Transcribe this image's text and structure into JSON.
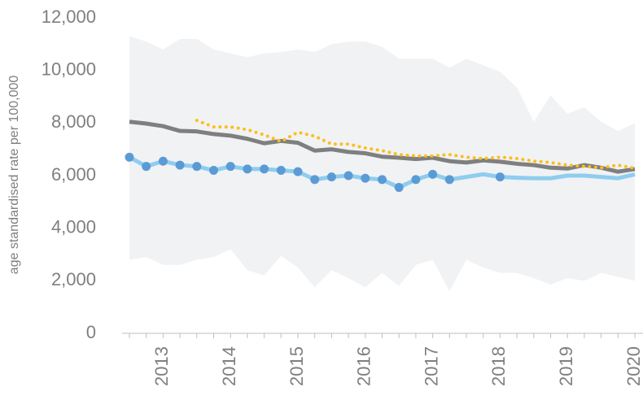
{
  "chart_data": {
    "type": "line",
    "y_label": "age standardised rate per 100,000",
    "categories": [
      null,
      null,
      "2013",
      null,
      null,
      null,
      "2014",
      null,
      null,
      null,
      "2015",
      null,
      null,
      null,
      "2016",
      null,
      null,
      null,
      "2017",
      null,
      null,
      null,
      "2018",
      null,
      null,
      null,
      "2019",
      null,
      null,
      null,
      "2020"
    ],
    "ylim": [
      0,
      12000
    ],
    "yticks": [
      0,
      {
        "value": 2000,
        "label": "2,000"
      },
      {
        "value": 4000,
        "label": "4,000"
      },
      {
        "value": 6000,
        "label": "6,000"
      },
      {
        "value": 8000,
        "label": "8,000"
      },
      {
        "value": 10000,
        "label": "10,000"
      },
      {
        "value": 12000,
        "label": "12,000"
      }
    ],
    "grid": false,
    "series": [
      {
        "style": "band",
        "color": "#f1f2f4",
        "values": [
          11300,
          11100,
          10800,
          11200,
          11200,
          10800,
          10650,
          10500,
          10650,
          10700,
          10800,
          10700,
          11000,
          11100,
          11100,
          10900,
          10450,
          10450,
          10450,
          10100,
          10450,
          10200,
          9950,
          9350,
          8050,
          9050,
          8350,
          8600,
          8050,
          7700,
          8000
        ],
        "lower": [
          2800,
          2900,
          2600,
          2600,
          2800,
          2900,
          3200,
          2400,
          2200,
          2950,
          2500,
          1750,
          2400,
          2100,
          1750,
          2300,
          1800,
          2600,
          2800,
          1600,
          2800,
          2500,
          2300,
          2300,
          2100,
          1850,
          2100,
          2000,
          2300,
          2150,
          2000
        ]
      },
      {
        "style": "line",
        "color": "#7f7f7f",
        "values": [
          8050,
          7980,
          7880,
          7700,
          7680,
          7580,
          7520,
          7400,
          7230,
          7320,
          7250,
          6950,
          7000,
          6900,
          6850,
          6720,
          6680,
          6630,
          6680,
          6550,
          6500,
          6580,
          6530,
          6450,
          6400,
          6300,
          6270,
          6400,
          6300,
          6150,
          6250
        ]
      },
      {
        "style": "dotted",
        "color": "#fbbf1b",
        "values": [
          null,
          null,
          null,
          null,
          8100,
          7850,
          7850,
          7750,
          7550,
          7300,
          7650,
          7500,
          7200,
          7200,
          7050,
          6950,
          6800,
          6750,
          6750,
          6800,
          6700,
          6650,
          6700,
          6650,
          6550,
          6500,
          6400,
          6350,
          6300,
          6400,
          6280
        ]
      },
      {
        "style": "line",
        "color": "#8ecdf0",
        "values": [
          6700,
          6350,
          6550,
          6400,
          6350,
          6200,
          6350,
          6250,
          6250,
          6200,
          6150,
          5850,
          5950,
          6000,
          5900,
          5850,
          5550,
          5850,
          6050,
          5850,
          5950,
          6050,
          5950,
          5920,
          5900,
          5900,
          6000,
          6000,
          5950,
          5900,
          6050
        ]
      },
      {
        "style": "markers",
        "color": "#5b9bd5",
        "values": [
          6700,
          6350,
          6550,
          6400,
          6350,
          6200,
          6350,
          6250,
          6250,
          6200,
          6150,
          5850,
          5950,
          6000,
          5900,
          5850,
          5550,
          5850,
          6050,
          5850,
          null,
          null,
          5950,
          null,
          null,
          null,
          null,
          null,
          null,
          null,
          null
        ]
      }
    ]
  }
}
